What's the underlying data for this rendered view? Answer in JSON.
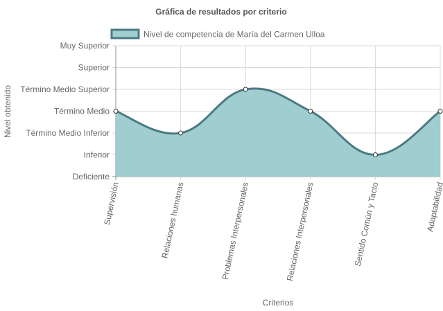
{
  "chart_data": {
    "type": "area",
    "title": "Gráfica de resultados por criterio",
    "xlabel": "Criterios",
    "ylabel": "Nivel obtenido",
    "categories": [
      "Supervisión",
      "Relaciones humanas",
      "Problemas Interpersonales",
      "Relaciones Interpersonales",
      "Sentido Común y Tacto",
      "Adaptabilidad"
    ],
    "y_levels": [
      "Deficiente",
      "Inferior",
      "Término Medio Inferior",
      "Término Medio",
      "Término Medio Superior",
      "Superior",
      "Muy Superior"
    ],
    "ylim": [
      0,
      6
    ],
    "series": [
      {
        "name": "Nivel de competencia de María del Carmen Ulloa",
        "values": [
          3,
          2,
          4,
          3,
          1,
          3
        ]
      }
    ],
    "colors": {
      "fill": "#a0cdd0",
      "line": "#4c7a82",
      "grid": "#d9d9d9",
      "axis": "#8c8c8c"
    },
    "grid": true,
    "legend_position": "top"
  }
}
